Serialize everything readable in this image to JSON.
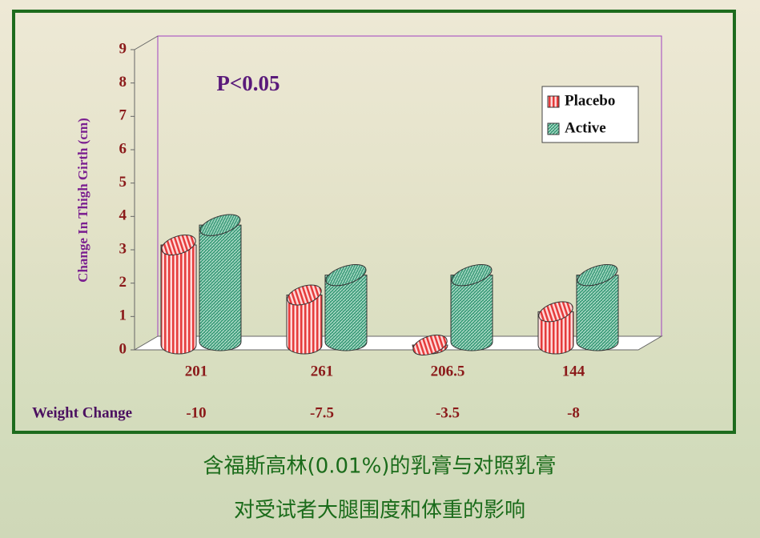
{
  "chart_data": {
    "type": "bar",
    "y_label": "Change In Thigh Girth (cm)",
    "annotation": "P<0.05",
    "categories": [
      "201",
      "261",
      "206.5",
      "144"
    ],
    "series": [
      {
        "name": "Placebo",
        "color": "#e53b3b",
        "values": [
          3,
          1.5,
          0,
          1
        ]
      },
      {
        "name": "Active",
        "color": "#3f9e7c",
        "values": [
          3.5,
          2,
          2,
          2
        ]
      }
    ],
    "ylim": [
      0,
      9
    ],
    "yticks": [
      0,
      1,
      2,
      3,
      4,
      5,
      6,
      7,
      8,
      9
    ],
    "weight_change": {
      "label": "Weight Change",
      "values": [
        -10,
        -7.5,
        -3.5,
        -8
      ]
    },
    "caption": [
      "含福斯高林(0.01%)的乳膏与对照乳膏",
      "对受试者大腿围度和体重的影响"
    ]
  }
}
